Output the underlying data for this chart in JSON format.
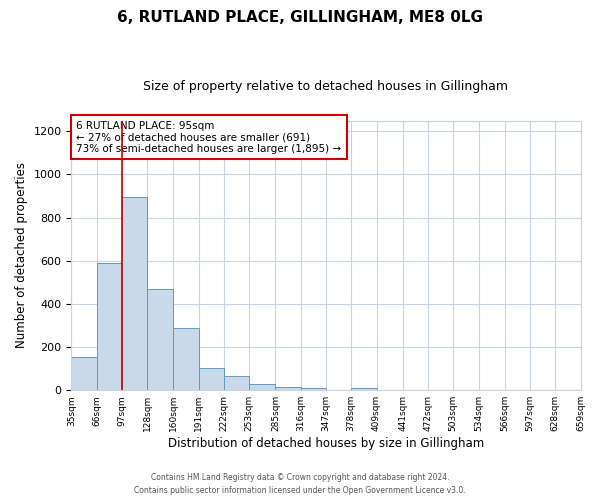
{
  "title": "6, RUTLAND PLACE, GILLINGHAM, ME8 0LG",
  "subtitle": "Size of property relative to detached houses in Gillingham",
  "xlabel": "Distribution of detached houses by size in Gillingham",
  "ylabel": "Number of detached properties",
  "bar_edges": [
    35,
    66,
    97,
    128,
    160,
    191,
    222,
    253,
    285,
    316,
    347,
    378,
    409,
    441,
    472,
    503,
    534,
    566,
    597,
    628,
    659
  ],
  "bar_heights": [
    155,
    590,
    895,
    470,
    290,
    105,
    65,
    28,
    15,
    10,
    0,
    10,
    0,
    0,
    0,
    0,
    0,
    0,
    0,
    0
  ],
  "bar_color": "#c9d9ea",
  "bar_edge_color": "#6699bb",
  "vline_x": 97,
  "vline_color": "#cc0000",
  "annotation_text": "6 RUTLAND PLACE: 95sqm\n← 27% of detached houses are smaller (691)\n73% of semi-detached houses are larger (1,895) →",
  "annotation_box_color": "#cc0000",
  "ylim": [
    0,
    1250
  ],
  "yticks": [
    0,
    200,
    400,
    600,
    800,
    1000,
    1200
  ],
  "tick_labels": [
    "35sqm",
    "66sqm",
    "97sqm",
    "128sqm",
    "160sqm",
    "191sqm",
    "222sqm",
    "253sqm",
    "285sqm",
    "316sqm",
    "347sqm",
    "378sqm",
    "409sqm",
    "441sqm",
    "472sqm",
    "503sqm",
    "534sqm",
    "566sqm",
    "597sqm",
    "628sqm",
    "659sqm"
  ],
  "footer_line1": "Contains HM Land Registry data © Crown copyright and database right 2024.",
  "footer_line2": "Contains public sector information licensed under the Open Government Licence v3.0.",
  "background_color": "#ffffff",
  "grid_color": "#c8d4e0"
}
